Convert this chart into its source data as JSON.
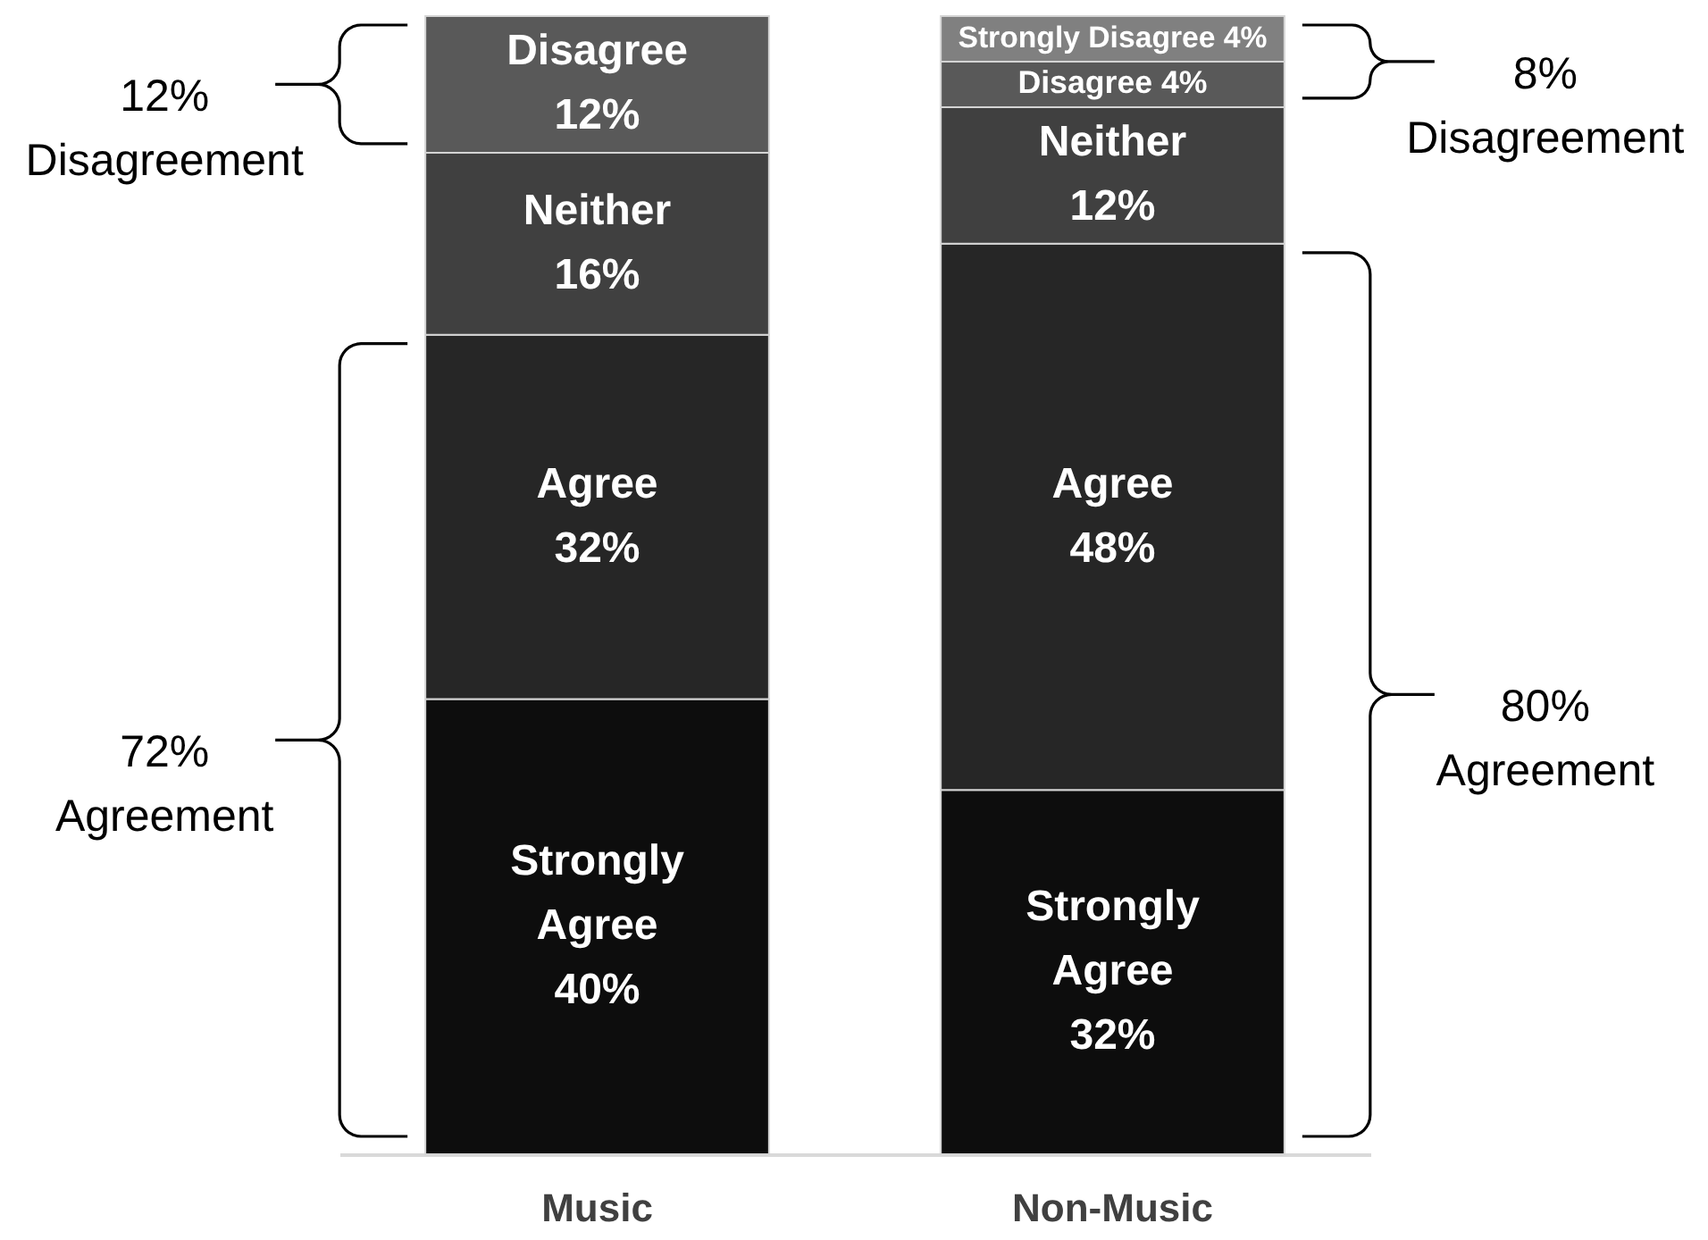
{
  "chart_data": {
    "type": "bar",
    "stacked": true,
    "categories": [
      "Music",
      "Non-Music"
    ],
    "series": [
      {
        "name": "Strongly Agree",
        "color": "#0d0d0d",
        "values": [
          40,
          32
        ],
        "value_labels": [
          "40%",
          "32%"
        ]
      },
      {
        "name": "Agree",
        "color": "#262626",
        "values": [
          32,
          48
        ],
        "value_labels": [
          "32%",
          "48%"
        ]
      },
      {
        "name": "Neither",
        "color": "#404040",
        "values": [
          16,
          12
        ],
        "value_labels": [
          "16%",
          "12%"
        ]
      },
      {
        "name": "Disagree",
        "color": "#595959",
        "values": [
          12,
          4
        ],
        "value_labels": [
          "12%",
          "4%"
        ]
      },
      {
        "name": "Strongly Disagree",
        "color": "#808080",
        "values": [
          null,
          4
        ],
        "value_labels": [
          null,
          "4%"
        ]
      }
    ],
    "annotations": [
      "12% Disagreement",
      "72% Agreement",
      "8% Disagreement",
      "80% Agreement"
    ]
  }
}
